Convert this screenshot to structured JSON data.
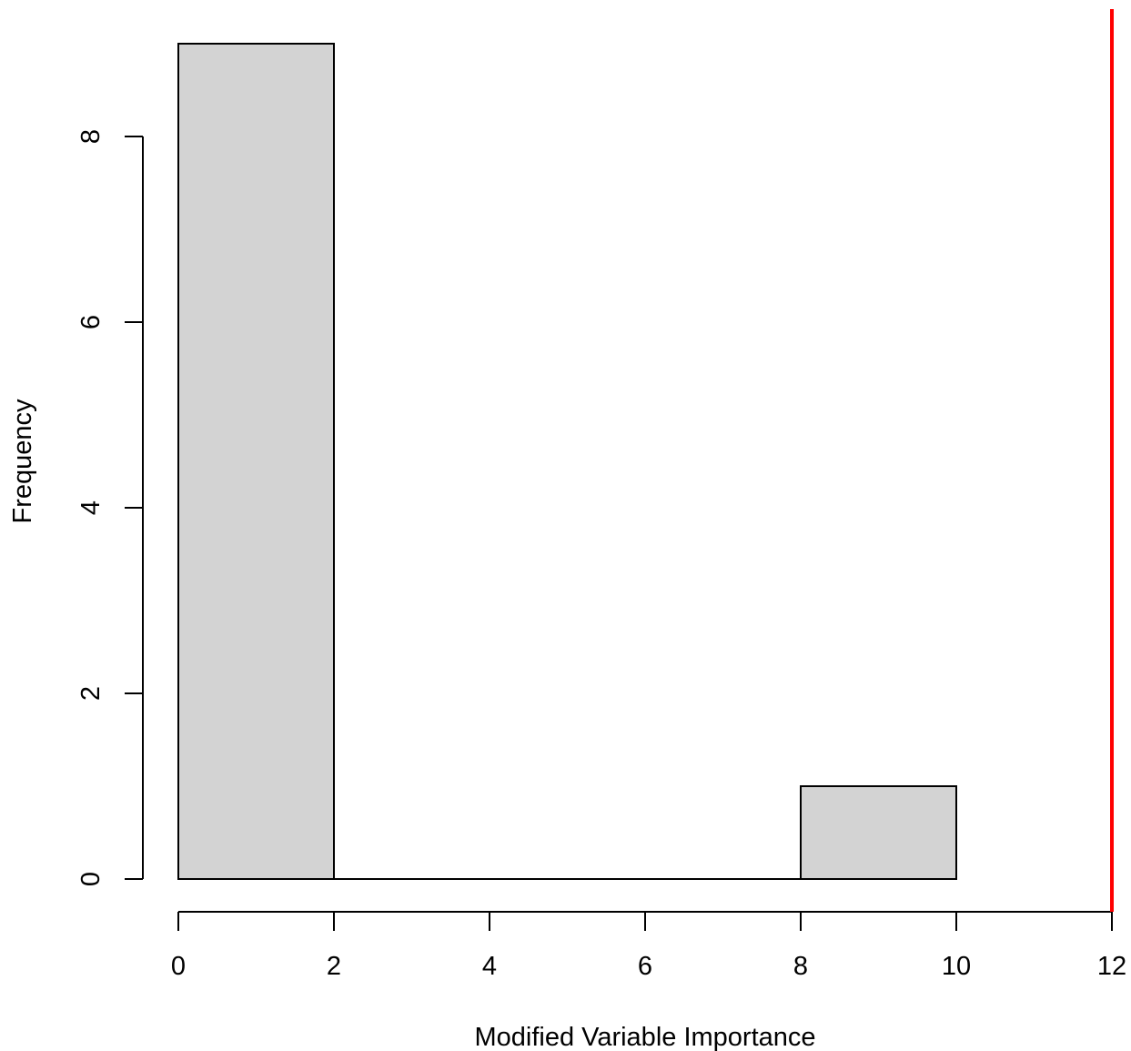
{
  "chart_data": {
    "type": "bar",
    "xlabel": "Modified Variable Importance",
    "ylabel": "Frequency",
    "bins": [
      {
        "x0": 0,
        "x1": 2,
        "count": 9
      },
      {
        "x0": 2,
        "x1": 4,
        "count": 0
      },
      {
        "x0": 4,
        "x1": 6,
        "count": 0
      },
      {
        "x0": 6,
        "x1": 8,
        "count": 0
      },
      {
        "x0": 8,
        "x1": 10,
        "count": 1
      }
    ],
    "xticks": [
      0,
      2,
      4,
      6,
      8,
      10,
      12
    ],
    "yticks": [
      0,
      2,
      4,
      6,
      8
    ],
    "xlim": [
      0,
      12
    ],
    "ylim": [
      0,
      9
    ],
    "reference_line": {
      "x": 12,
      "color": "#ff0000"
    },
    "bar_color": "#d3d3d3",
    "grid": false,
    "legend": "none"
  }
}
